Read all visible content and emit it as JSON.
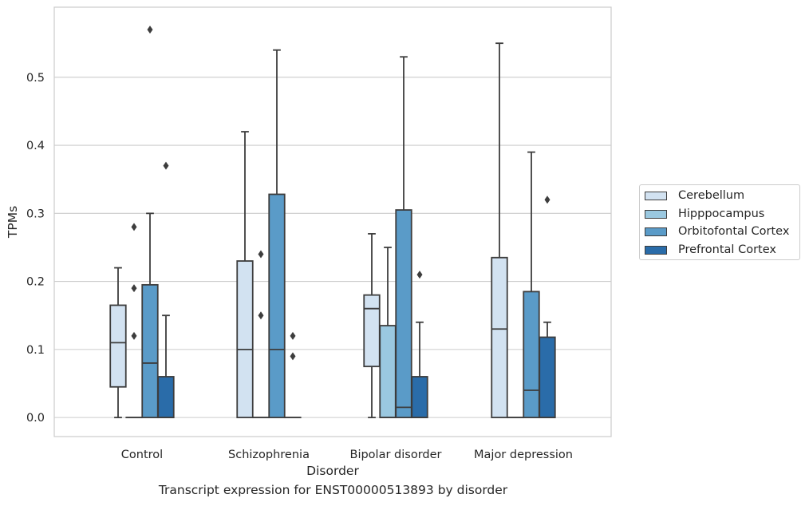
{
  "caption": "Transcript expression for ENST00000513893 by disorder",
  "chart_data": {
    "type": "box",
    "xlabel": "Disorder",
    "ylabel": "TPMs",
    "ylim": [
      -0.028,
      0.603
    ],
    "yticks": [
      0.0,
      0.1,
      0.2,
      0.3,
      0.4,
      0.5
    ],
    "ytick_labels": [
      "0.0",
      "0.1",
      "0.2",
      "0.3",
      "0.4",
      "0.5"
    ],
    "grid": "horizontal",
    "legend_position": "right",
    "categories": [
      "Control",
      "Schizophrenia",
      "Bipolar disorder",
      "Major depression"
    ],
    "series": [
      {
        "name": "Cerebellum",
        "color": "#d2e2f1",
        "boxes": [
          {
            "q1": 0.045,
            "median": 0.11,
            "q3": 0.165,
            "whisker_low": 0.0,
            "whisker_high": 0.22,
            "outliers": []
          },
          {
            "q1": 0.0,
            "median": 0.1,
            "q3": 0.23,
            "whisker_low": 0.0,
            "whisker_high": 0.42,
            "outliers": []
          },
          {
            "q1": 0.075,
            "median": 0.16,
            "q3": 0.18,
            "whisker_low": 0.0,
            "whisker_high": 0.27,
            "outliers": []
          },
          {
            "q1": 0.0,
            "median": 0.13,
            "q3": 0.235,
            "whisker_low": 0.0,
            "whisker_high": 0.55,
            "outliers": []
          }
        ]
      },
      {
        "name": "Hipppocampus",
        "color": "#9ac8e0",
        "boxes": [
          {
            "q1": 0.0,
            "median": 0.0,
            "q3": 0.0,
            "whisker_low": 0.0,
            "whisker_high": 0.0,
            "outliers": [
              0.12,
              0.19,
              0.28
            ]
          },
          {
            "q1": 0.0,
            "median": 0.0,
            "q3": 0.0,
            "whisker_low": 0.0,
            "whisker_high": 0.0,
            "outliers": [
              0.15,
              0.24
            ]
          },
          {
            "q1": 0.0,
            "median": 0.0,
            "q3": 0.135,
            "whisker_low": 0.0,
            "whisker_high": 0.25,
            "outliers": []
          },
          {
            "q1": 0.0,
            "median": 0.0,
            "q3": 0.0,
            "whisker_low": 0.0,
            "whisker_high": 0.0,
            "outliers": []
          }
        ]
      },
      {
        "name": "Orbitofontal Cortex",
        "color": "#5a9bc8",
        "boxes": [
          {
            "q1": 0.0,
            "median": 0.08,
            "q3": 0.195,
            "whisker_low": 0.0,
            "whisker_high": 0.3,
            "outliers": [
              0.57
            ]
          },
          {
            "q1": 0.0,
            "median": 0.1,
            "q3": 0.328,
            "whisker_low": 0.0,
            "whisker_high": 0.54,
            "outliers": []
          },
          {
            "q1": 0.0,
            "median": 0.015,
            "q3": 0.305,
            "whisker_low": 0.0,
            "whisker_high": 0.53,
            "outliers": []
          },
          {
            "q1": 0.0,
            "median": 0.04,
            "q3": 0.185,
            "whisker_low": 0.0,
            "whisker_high": 0.39,
            "outliers": []
          }
        ]
      },
      {
        "name": "Prefrontal Cortex",
        "color": "#2a6ca9",
        "boxes": [
          {
            "q1": 0.0,
            "median": 0.0,
            "q3": 0.06,
            "whisker_low": 0.0,
            "whisker_high": 0.15,
            "outliers": [
              0.37
            ]
          },
          {
            "q1": 0.0,
            "median": 0.0,
            "q3": 0.0,
            "whisker_low": 0.0,
            "whisker_high": 0.0,
            "outliers": [
              0.09,
              0.12
            ]
          },
          {
            "q1": 0.0,
            "median": 0.0,
            "q3": 0.06,
            "whisker_low": 0.0,
            "whisker_high": 0.14,
            "outliers": [
              0.21
            ]
          },
          {
            "q1": 0.0,
            "median": 0.0,
            "q3": 0.118,
            "whisker_low": 0.0,
            "whisker_high": 0.14,
            "outliers": [
              0.32
            ]
          }
        ]
      }
    ]
  }
}
